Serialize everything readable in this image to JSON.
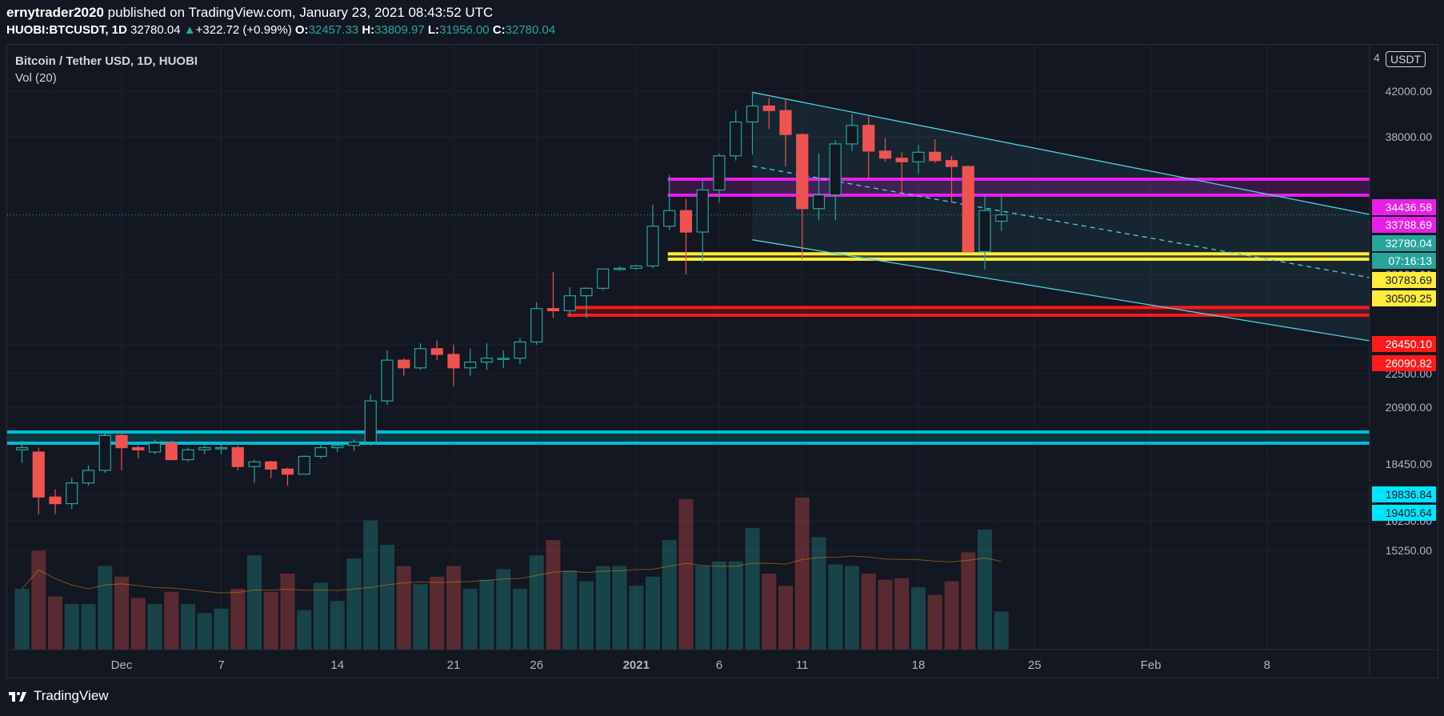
{
  "header": {
    "author": "ernytrader2020",
    "published_text": "published on TradingView.com, January 23, 2021 08:43:52 UTC",
    "symbol": "HUOBI:BTCUSDT, 1D",
    "last_price": "32780.04",
    "change_arrow": "▲",
    "change": "+322.72 (+0.99%)",
    "open_label": "O:",
    "open": "32457.33",
    "high_label": "H:",
    "high": "33809.97",
    "low_label": "L:",
    "low": "31956.00",
    "close_label": "C:",
    "close": "32780.04"
  },
  "legend": {
    "title": "Bitcoin / Tether USD, 1D, HUOBI",
    "indicator": "Vol (20)"
  },
  "currency_button": "USDT",
  "footer": {
    "brand": "TradingView",
    "logo_icon": "tradingview-logo-icon"
  },
  "colors": {
    "background": "#131722",
    "up": "#26a69a",
    "down": "#ef5350",
    "magenta": "#e91ee9",
    "yellow": "#ffeb3b",
    "red": "#ff1a1a",
    "cyan": "#00bcd4",
    "channel": "#4dd0e1"
  },
  "chart_data": {
    "type": "candlestick",
    "title": "Bitcoin / Tether USD, 1D, HUOBI",
    "y_axis_ticks": [
      "42000.00",
      "38000.00",
      "28000.00",
      "24000.00",
      "22500.00",
      "20900.00",
      "18450.00",
      "17250.00",
      "16250.00",
      "15250.00"
    ],
    "y_axis_partial_top": "4",
    "x_axis_ticks": [
      {
        "label": "Dec",
        "date": "2020-12-01"
      },
      {
        "label": "7",
        "date": "2020-12-07"
      },
      {
        "label": "14",
        "date": "2020-12-14"
      },
      {
        "label": "21",
        "date": "2020-12-21"
      },
      {
        "label": "26",
        "date": "2020-12-26"
      },
      {
        "label": "2021",
        "date": "2021-01-01"
      },
      {
        "label": "6",
        "date": "2021-01-06"
      },
      {
        "label": "11",
        "date": "2021-01-11"
      },
      {
        "label": "18",
        "date": "2021-01-18"
      },
      {
        "label": "25",
        "date": "2021-01-25"
      },
      {
        "label": "Feb",
        "date": "2021-02-01"
      },
      {
        "label": "8",
        "date": "2021-02-08"
      }
    ],
    "candles": [
      {
        "date": "2020-11-25",
        "o": 19100,
        "h": 19500,
        "l": 18500,
        "c": 19200,
        "v": 0.4
      },
      {
        "date": "2020-11-26",
        "o": 19000,
        "h": 19200,
        "l": 16500,
        "c": 17150,
        "v": 0.65
      },
      {
        "date": "2020-11-27",
        "o": 17150,
        "h": 17450,
        "l": 16500,
        "c": 16900,
        "v": 0.35
      },
      {
        "date": "2020-11-28",
        "o": 16900,
        "h": 17900,
        "l": 16700,
        "c": 17700,
        "v": 0.3
      },
      {
        "date": "2020-11-29",
        "o": 17700,
        "h": 18400,
        "l": 17600,
        "c": 18200,
        "v": 0.3
      },
      {
        "date": "2020-11-30",
        "o": 18200,
        "h": 19800,
        "l": 18100,
        "c": 19700,
        "v": 0.55
      },
      {
        "date": "2020-12-01",
        "o": 19700,
        "h": 19900,
        "l": 18200,
        "c": 19200,
        "v": 0.48
      },
      {
        "date": "2020-12-02",
        "o": 19200,
        "h": 19300,
        "l": 18700,
        "c": 19100,
        "v": 0.34
      },
      {
        "date": "2020-12-03",
        "o": 19000,
        "h": 19550,
        "l": 18900,
        "c": 19400,
        "v": 0.3
      },
      {
        "date": "2020-12-04",
        "o": 19400,
        "h": 19500,
        "l": 18800,
        "c": 18650,
        "v": 0.38
      },
      {
        "date": "2020-12-05",
        "o": 18650,
        "h": 19200,
        "l": 18550,
        "c": 19100,
        "v": 0.3
      },
      {
        "date": "2020-12-06",
        "o": 19100,
        "h": 19300,
        "l": 18900,
        "c": 19200,
        "v": 0.24
      },
      {
        "date": "2020-12-07",
        "o": 19200,
        "h": 19350,
        "l": 18900,
        "c": 19200,
        "v": 0.27
      },
      {
        "date": "2020-12-08",
        "o": 19200,
        "h": 19300,
        "l": 18200,
        "c": 18350,
        "v": 0.4
      },
      {
        "date": "2020-12-09",
        "o": 18350,
        "h": 18650,
        "l": 17700,
        "c": 18550,
        "v": 0.62
      },
      {
        "date": "2020-12-10",
        "o": 18550,
        "h": 18600,
        "l": 17900,
        "c": 18250,
        "v": 0.38
      },
      {
        "date": "2020-12-11",
        "o": 18250,
        "h": 18300,
        "l": 17600,
        "c": 18050,
        "v": 0.5
      },
      {
        "date": "2020-12-12",
        "o": 18050,
        "h": 18850,
        "l": 18050,
        "c": 18800,
        "v": 0.26
      },
      {
        "date": "2020-12-13",
        "o": 18800,
        "h": 19400,
        "l": 18700,
        "c": 19200,
        "v": 0.44
      },
      {
        "date": "2020-12-14",
        "o": 19200,
        "h": 19350,
        "l": 19000,
        "c": 19300,
        "v": 0.32
      },
      {
        "date": "2020-12-15",
        "o": 19300,
        "h": 19550,
        "l": 19050,
        "c": 19450,
        "v": 0.6
      },
      {
        "date": "2020-12-16",
        "o": 19450,
        "h": 21500,
        "l": 19300,
        "c": 21200,
        "v": 0.85
      },
      {
        "date": "2020-12-17",
        "o": 21200,
        "h": 23700,
        "l": 21000,
        "c": 23200,
        "v": 0.69
      },
      {
        "date": "2020-12-18",
        "o": 23200,
        "h": 23300,
        "l": 22400,
        "c": 22800,
        "v": 0.55
      },
      {
        "date": "2020-12-19",
        "o": 22800,
        "h": 24100,
        "l": 22700,
        "c": 23800,
        "v": 0.43
      },
      {
        "date": "2020-12-20",
        "o": 23800,
        "h": 24300,
        "l": 23200,
        "c": 23500,
        "v": 0.48
      },
      {
        "date": "2020-12-21",
        "o": 23500,
        "h": 24000,
        "l": 21900,
        "c": 22800,
        "v": 0.55
      },
      {
        "date": "2020-12-22",
        "o": 22800,
        "h": 23800,
        "l": 22400,
        "c": 23100,
        "v": 0.4
      },
      {
        "date": "2020-12-23",
        "o": 23100,
        "h": 24100,
        "l": 22700,
        "c": 23300,
        "v": 0.46
      },
      {
        "date": "2020-12-24",
        "o": 23300,
        "h": 23700,
        "l": 22800,
        "c": 23300,
        "v": 0.53
      },
      {
        "date": "2020-12-25",
        "o": 23300,
        "h": 24500,
        "l": 23000,
        "c": 24200,
        "v": 0.4
      },
      {
        "date": "2020-12-26",
        "o": 24200,
        "h": 26700,
        "l": 24000,
        "c": 26400,
        "v": 0.62
      },
      {
        "date": "2020-12-27",
        "o": 26400,
        "h": 28400,
        "l": 25900,
        "c": 26300,
        "v": 0.72
      },
      {
        "date": "2020-12-28",
        "o": 26300,
        "h": 27400,
        "l": 26000,
        "c": 27000,
        "v": 0.52
      },
      {
        "date": "2020-12-29",
        "o": 27000,
        "h": 27400,
        "l": 25900,
        "c": 27350,
        "v": 0.45
      },
      {
        "date": "2020-12-30",
        "o": 27350,
        "h": 28900,
        "l": 27250,
        "c": 28900,
        "v": 0.55
      },
      {
        "date": "2020-12-31",
        "o": 28900,
        "h": 29300,
        "l": 28600,
        "c": 29000,
        "v": 0.55
      },
      {
        "date": "2021-01-01",
        "o": 29000,
        "h": 29600,
        "l": 28800,
        "c": 29400,
        "v": 0.42
      },
      {
        "date": "2021-01-02",
        "o": 29400,
        "h": 33300,
        "l": 29000,
        "c": 32200,
        "v": 0.48
      },
      {
        "date": "2021-01-03",
        "o": 32200,
        "h": 34800,
        "l": 32000,
        "c": 33000,
        "v": 0.72
      },
      {
        "date": "2021-01-04",
        "o": 33000,
        "h": 33600,
        "l": 28000,
        "c": 31900,
        "v": 0.99
      },
      {
        "date": "2021-01-05",
        "o": 31900,
        "h": 34400,
        "l": 30000,
        "c": 34000,
        "v": 0.55
      },
      {
        "date": "2021-01-06",
        "o": 34000,
        "h": 36600,
        "l": 33400,
        "c": 36400,
        "v": 0.58
      },
      {
        "date": "2021-01-07",
        "o": 36400,
        "h": 40300,
        "l": 36000,
        "c": 39300,
        "v": 0.58
      },
      {
        "date": "2021-01-08",
        "o": 39300,
        "h": 41950,
        "l": 36500,
        "c": 40700,
        "v": 0.8
      },
      {
        "date": "2021-01-09",
        "o": 40700,
        "h": 41400,
        "l": 38700,
        "c": 40300,
        "v": 0.5
      },
      {
        "date": "2021-01-10",
        "o": 40300,
        "h": 41350,
        "l": 35500,
        "c": 38200,
        "v": 0.42
      },
      {
        "date": "2021-01-11",
        "o": 38200,
        "h": 38300,
        "l": 30500,
        "c": 33100,
        "v": 1.0
      },
      {
        "date": "2021-01-12",
        "o": 33100,
        "h": 36600,
        "l": 32500,
        "c": 33800,
        "v": 0.74
      },
      {
        "date": "2021-01-13",
        "o": 33800,
        "h": 37700,
        "l": 32500,
        "c": 37400,
        "v": 0.56
      },
      {
        "date": "2021-01-14",
        "o": 37400,
        "h": 40000,
        "l": 36800,
        "c": 39000,
        "v": 0.55
      },
      {
        "date": "2021-01-15",
        "o": 39000,
        "h": 39800,
        "l": 34400,
        "c": 36800,
        "v": 0.5
      },
      {
        "date": "2021-01-16",
        "o": 36800,
        "h": 37900,
        "l": 35900,
        "c": 36200,
        "v": 0.46
      },
      {
        "date": "2021-01-17",
        "o": 36200,
        "h": 36700,
        "l": 33900,
        "c": 35900,
        "v": 0.47
      },
      {
        "date": "2021-01-18",
        "o": 35900,
        "h": 37300,
        "l": 34900,
        "c": 36700,
        "v": 0.41
      },
      {
        "date": "2021-01-19",
        "o": 36700,
        "h": 37800,
        "l": 35800,
        "c": 36000,
        "v": 0.36
      },
      {
        "date": "2021-01-20",
        "o": 36000,
        "h": 36400,
        "l": 33400,
        "c": 35500,
        "v": 0.45
      },
      {
        "date": "2021-01-21",
        "o": 35500,
        "h": 35600,
        "l": 30900,
        "c": 30900,
        "v": 0.64
      },
      {
        "date": "2021-01-22",
        "o": 30900,
        "h": 33800,
        "l": 28800,
        "c": 33000,
        "v": 0.79
      },
      {
        "date": "2021-01-23",
        "o": 32457,
        "h": 33810,
        "l": 31956,
        "c": 32780,
        "v": 0.25
      }
    ],
    "horizontal_levels": [
      {
        "value": "34436.58",
        "color": "magenta"
      },
      {
        "value": "33788.69",
        "color": "magenta"
      },
      {
        "value": "30783.69",
        "color": "yellow"
      },
      {
        "value": "30509.25",
        "color": "yellow"
      },
      {
        "value": "26450.10",
        "color": "red"
      },
      {
        "value": "26090.82",
        "color": "red"
      },
      {
        "value": "19836.84",
        "color": "cyan"
      },
      {
        "value": "19405.64",
        "color": "cyan"
      }
    ],
    "current_price_label": "32780.04",
    "countdown_label": "07:16:13",
    "channel": "descending parallel channel from 2021-01-08 with dashed midline",
    "grid": true,
    "volume_pane": true
  }
}
